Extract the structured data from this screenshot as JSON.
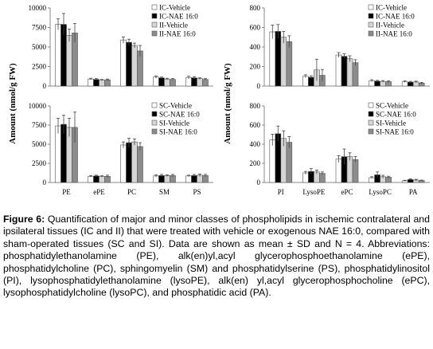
{
  "colors": {
    "vehicle_a": "#ffffff",
    "nae_a": "#000000",
    "vehicle_b": "#d6d6d6",
    "nae_b": "#8c8c8c",
    "axis": "#888888"
  },
  "ylabel": "Amount (nmol/g FW)",
  "caption": {
    "label": "Figure 6:",
    "text": " Quantification of major and minor classes of phospholipids in ischemic contralateral and ipsilateral tissues (IC and II) that were treated with vehicle or exogenous NAE 16:0, compared with sham-operated tissues (SC and SI). Data are shown as mean ± SD and N = 4. Abbreviations: phosphatidylethanolamine (PE), alk(en)yl,acyl glycerophosphoethanolamine (ePE), phosphatidylcholine (PC), sphingomyelin (SM) and phosphatidylserine (PS), phosphatidylinositol (PI), lysophosphatidylethanolamine (lysoPE), alk(en) yl,acyl glycerophosphocholine (ePC), lysophosphatidylcholine (lysoPC), and phosphatidic acid (PA)."
  },
  "chart_data": [
    {
      "type": "bar",
      "panel": "top-left",
      "categories": [
        "PE",
        "ePE",
        "PC",
        "SM",
        "PS"
      ],
      "ylim": [
        0,
        10000
      ],
      "yticks": [
        "0",
        "2500",
        "5000",
        "7500",
        "10000"
      ],
      "legend_position": "top-right",
      "series": [
        {
          "name": "IC-Vehicle",
          "values": [
            7900,
            900,
            5900,
            1150,
            1100
          ],
          "errors": [
            700,
            100,
            400,
            150,
            150
          ]
        },
        {
          "name": "IC-NAE 16:0",
          "values": [
            7900,
            850,
            5600,
            1050,
            1050
          ],
          "errors": [
            1400,
            100,
            400,
            100,
            150
          ]
        },
        {
          "name": "II-Vehicle",
          "values": [
            6500,
            750,
            5200,
            900,
            950
          ],
          "errors": [
            800,
            100,
            300,
            100,
            100
          ]
        },
        {
          "name": "II-NAE 16:0",
          "values": [
            6800,
            800,
            4500,
            850,
            850
          ],
          "errors": [
            1200,
            100,
            700,
            100,
            100
          ]
        }
      ]
    },
    {
      "type": "bar",
      "panel": "bottom-left",
      "categories": [
        "PE",
        "ePE",
        "PC",
        "SM",
        "PS"
      ],
      "ylim": [
        0,
        10000
      ],
      "yticks": [
        "0",
        "2500",
        "5000",
        "7500",
        "10000"
      ],
      "legend_position": "top-right",
      "series": [
        {
          "name": "SC-Vehicle",
          "values": [
            7400,
            800,
            4900,
            850,
            850
          ],
          "errors": [
            1000,
            100,
            400,
            150,
            100
          ]
        },
        {
          "name": "SC-NAE 16:0",
          "values": [
            7600,
            850,
            5200,
            900,
            900
          ],
          "errors": [
            1200,
            100,
            600,
            150,
            150
          ]
        },
        {
          "name": "SI-Vehicle",
          "values": [
            7200,
            800,
            5300,
            900,
            950
          ],
          "errors": [
            1200,
            100,
            400,
            100,
            150
          ]
        },
        {
          "name": "SI-NAE 16:0",
          "values": [
            7200,
            800,
            4700,
            900,
            900
          ],
          "errors": [
            2000,
            150,
            500,
            150,
            150
          ]
        }
      ]
    },
    {
      "type": "bar",
      "panel": "top-right",
      "categories": [
        "PI",
        "LysoPE",
        "ePC",
        "LysoPC",
        "PA"
      ],
      "ylim": [
        0,
        800
      ],
      "yticks": [
        "0",
        "200",
        "400",
        "600",
        "800"
      ],
      "legend_position": "top-right",
      "series": [
        {
          "name": "IC-Vehicle",
          "values": [
            555,
            100,
            318,
            55,
            45
          ],
          "errors": [
            70,
            15,
            25,
            10,
            8
          ]
        },
        {
          "name": "IC-NAE 16:0",
          "values": [
            560,
            90,
            305,
            50,
            40
          ],
          "errors": [
            70,
            15,
            25,
            8,
            8
          ]
        },
        {
          "name": "II-Vehicle",
          "values": [
            500,
            165,
            280,
            48,
            42
          ],
          "errors": [
            60,
            110,
            30,
            8,
            8
          ]
        },
        {
          "name": "II-NAE 16:0",
          "values": [
            455,
            110,
            240,
            45,
            30
          ],
          "errors": [
            60,
            60,
            30,
            8,
            8
          ]
        }
      ]
    },
    {
      "type": "bar",
      "panel": "bottom-right",
      "categories": [
        "PI",
        "LysoPE",
        "ePC",
        "LysoPC",
        "PA"
      ],
      "ylim": [
        0,
        800
      ],
      "yticks": [
        "0",
        "200",
        "400",
        "600",
        "800"
      ],
      "legend_position": "top-right",
      "series": [
        {
          "name": "SC-Vehicle",
          "values": [
            445,
            100,
            245,
            50,
            18
          ],
          "errors": [
            60,
            15,
            35,
            10,
            5
          ]
        },
        {
          "name": "SC-NAE 16:0",
          "values": [
            510,
            115,
            270,
            80,
            30
          ],
          "errors": [
            80,
            30,
            80,
            30,
            8
          ]
        },
        {
          "name": "SI-Vehicle",
          "values": [
            460,
            110,
            270,
            60,
            25
          ],
          "errors": [
            80,
            20,
            40,
            15,
            8
          ]
        },
        {
          "name": "SI-NAE 16:0",
          "values": [
            420,
            95,
            240,
            55,
            20
          ],
          "errors": [
            60,
            15,
            30,
            10,
            5
          ]
        }
      ]
    }
  ]
}
